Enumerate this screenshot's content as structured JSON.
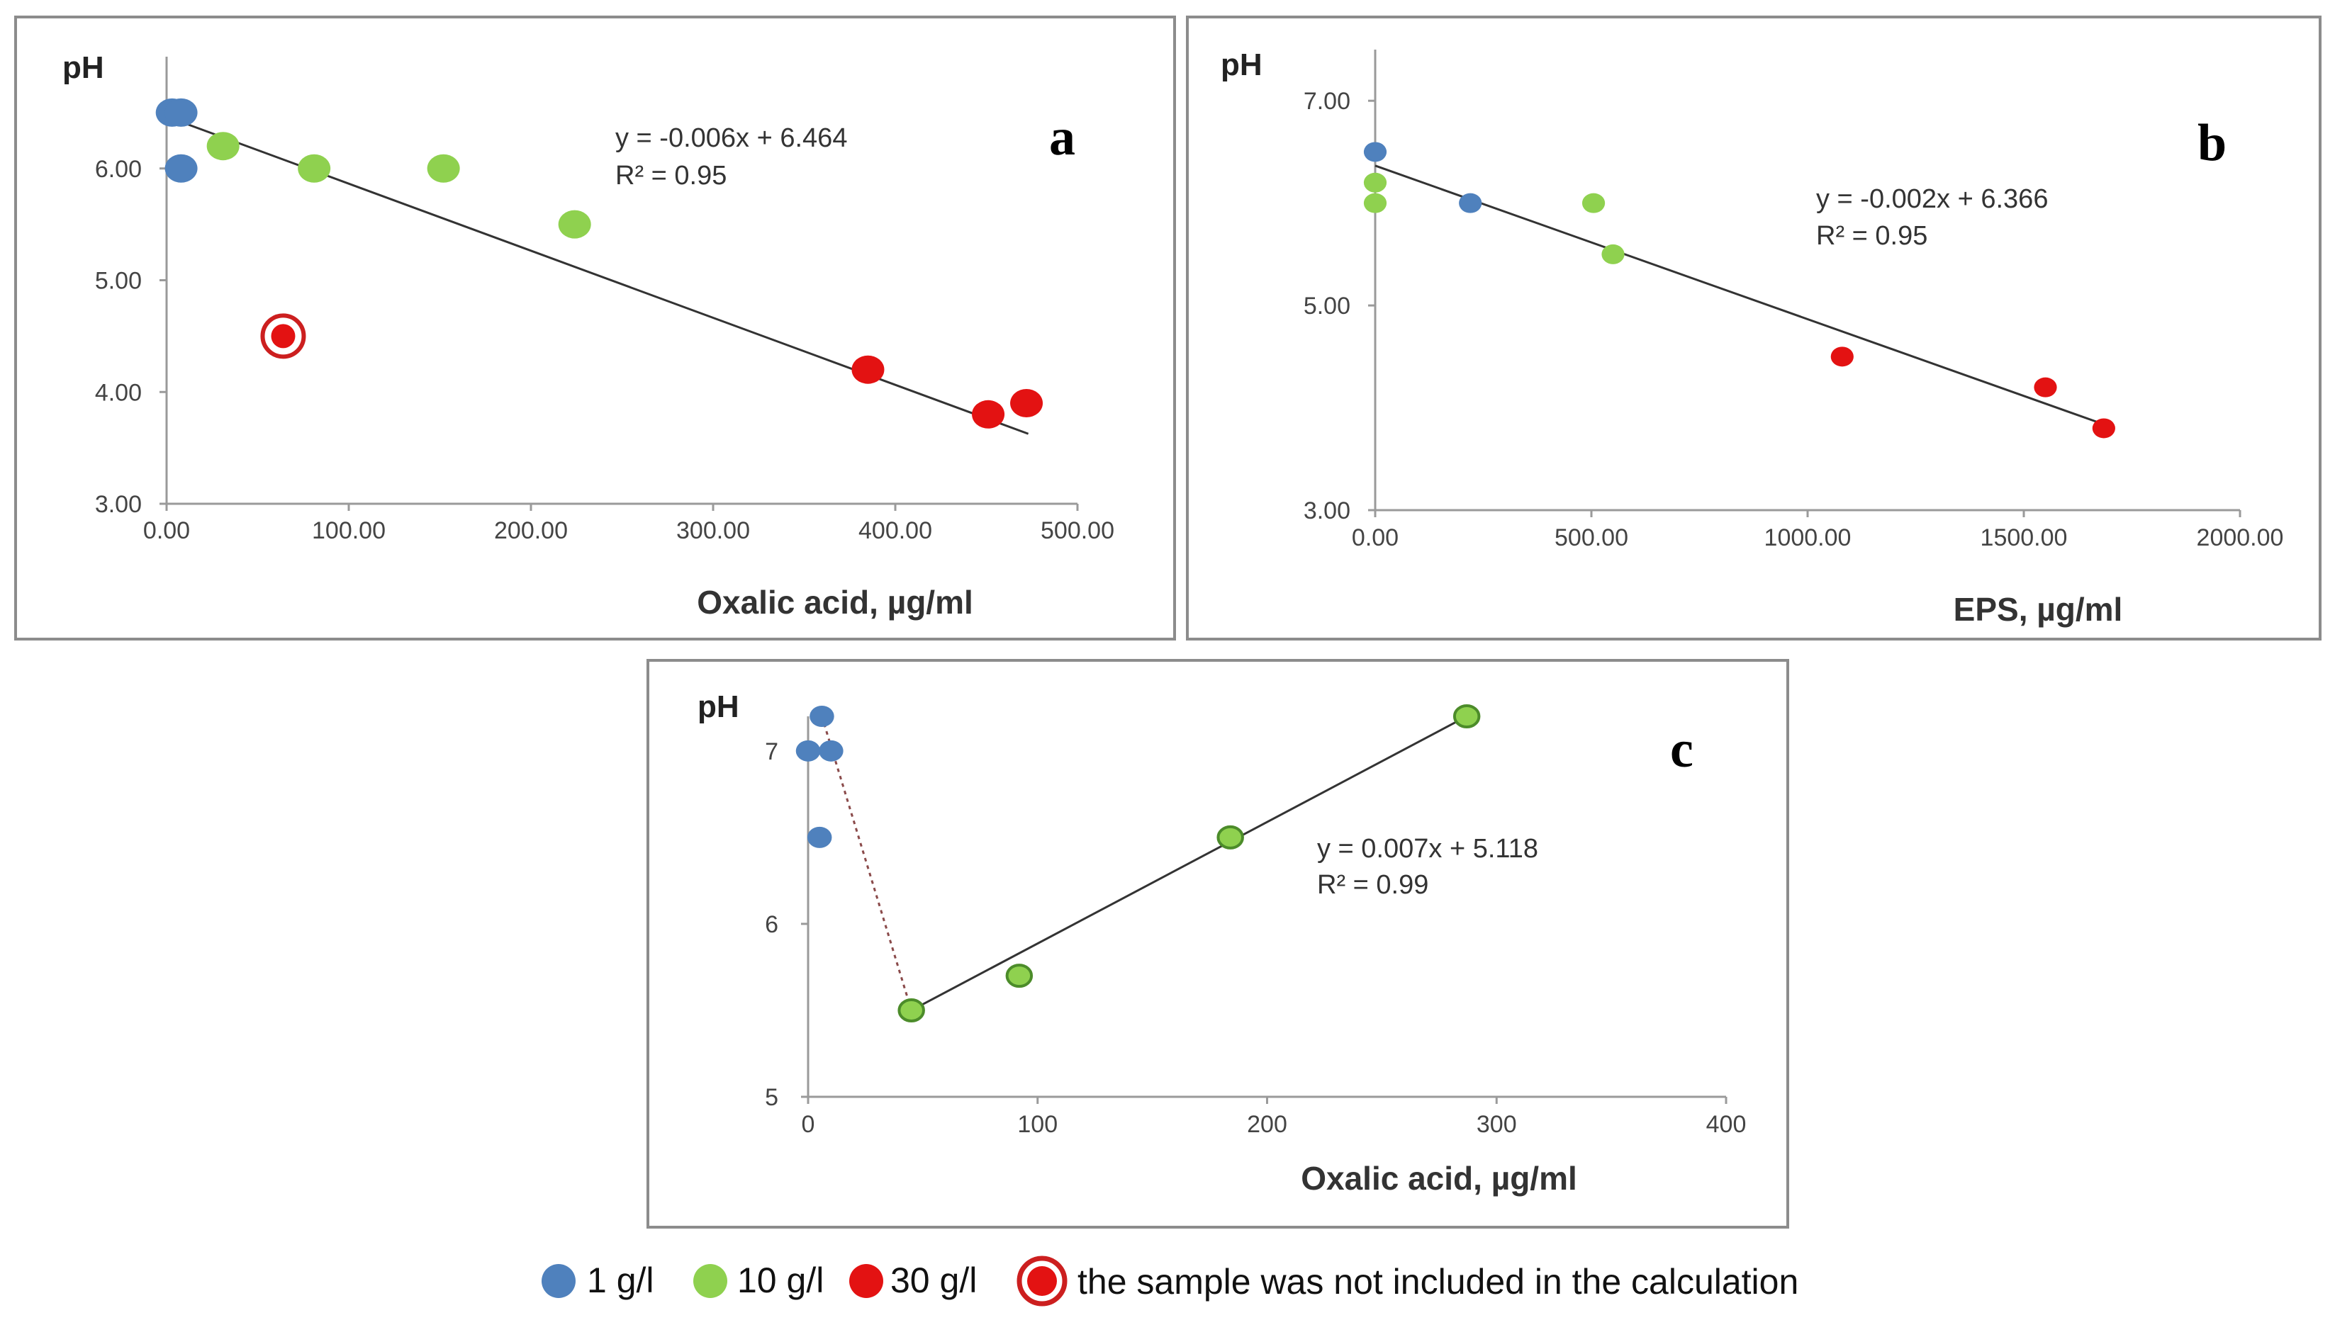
{
  "colors": {
    "1 g/l": "#4f81bd",
    "10 g/l": "#8fd14f",
    "30 g/l": "#e31212",
    "excluded_ring": "#cc1f1f",
    "green_outline": "#4c8c2a"
  },
  "legend": {
    "items": [
      {
        "key": "1 g/l",
        "label": "1 g/l"
      },
      {
        "key": "10 g/l",
        "label": "10 g/l"
      },
      {
        "key": "30 g/l",
        "label": "30 g/l"
      }
    ],
    "excluded_label": "the sample was not included in the calculation"
  },
  "chart_data": [
    {
      "type": "scatter",
      "panel": "a",
      "ylabel": "pH",
      "xlabel": "Oxalic acid, µg/ml",
      "xlim": [
        0,
        500
      ],
      "ylim": [
        3,
        7
      ],
      "xticks": [
        0,
        100,
        200,
        300,
        400,
        500
      ],
      "xtick_labels": [
        "0.00",
        "100.00",
        "200.00",
        "300.00",
        "400.00",
        "500.00"
      ],
      "yticks": [
        3,
        4,
        5,
        6
      ],
      "ytick_labels": [
        "3.00",
        "4.00",
        "5.00",
        "6.00"
      ],
      "equation": "y = -0.006x + 6.464",
      "r2": "R² = 0.95",
      "trendline": {
        "slope": -0.006,
        "intercept": 6.464,
        "x_range": [
          3,
          473
        ]
      },
      "series": [
        {
          "name": "1 g/l",
          "points": [
            [
              3,
              6.5
            ],
            [
              8,
              6.5
            ],
            [
              8,
              6.0
            ]
          ]
        },
        {
          "name": "10 g/l",
          "points": [
            [
              31,
              6.2
            ],
            [
              81,
              6.0
            ],
            [
              152,
              6.0
            ],
            [
              224,
              5.5
            ]
          ]
        },
        {
          "name": "30 g/l",
          "points": [
            [
              385,
              4.2
            ],
            [
              451,
              3.8
            ],
            [
              472,
              3.9
            ]
          ]
        }
      ],
      "excluded_points": [
        [
          64,
          4.5
        ]
      ]
    },
    {
      "type": "scatter",
      "panel": "b",
      "ylabel": "pH",
      "xlabel": "EPS, µg/ml",
      "xlim": [
        0,
        2000
      ],
      "ylim": [
        3,
        7.5
      ],
      "xticks": [
        0,
        500,
        1000,
        1500,
        2000
      ],
      "xtick_labels": [
        "0.00",
        "500.00",
        "1000.00",
        "1500.00",
        "2000.00"
      ],
      "yticks": [
        3,
        5,
        7
      ],
      "ytick_labels": [
        "3.00",
        "5.00",
        "7.00"
      ],
      "equation": "y = -0.002x + 6.366",
      "r2": "R² = 0.95",
      "trendline": {
        "slope": -0.0015,
        "intercept": 6.366,
        "x_range": [
          0,
          1685
        ]
      },
      "series": [
        {
          "name": "1 g/l",
          "points": [
            [
              0,
              6.5
            ],
            [
              220,
              6.0
            ]
          ]
        },
        {
          "name": "10 g/l",
          "points": [
            [
              0,
              6.2
            ],
            [
              0,
              6.0
            ],
            [
              505,
              6.0
            ],
            [
              550,
              5.5
            ]
          ]
        },
        {
          "name": "30 g/l",
          "points": [
            [
              1080,
              4.5
            ],
            [
              1550,
              4.2
            ],
            [
              1685,
              3.8
            ]
          ]
        }
      ]
    },
    {
      "type": "scatter",
      "panel": "c",
      "ylabel": "pH",
      "xlabel": "Oxalic acid, µg/ml",
      "xlim": [
        0,
        400
      ],
      "ylim": [
        5,
        7.2
      ],
      "xticks": [
        0,
        100,
        200,
        300,
        400
      ],
      "xtick_labels": [
        "0",
        "100",
        "200",
        "300",
        "400"
      ],
      "yticks": [
        5,
        6,
        7
      ],
      "ytick_labels": [
        "5",
        "6",
        "7"
      ],
      "equation": "y = 0.007x + 5.118",
      "r2": "R² = 0.99",
      "trendline": {
        "points": [
          [
            45,
            5.5
          ],
          [
            287,
            7.2
          ]
        ]
      },
      "dashed_line": {
        "points": [
          [
            6,
            7.2
          ],
          [
            45,
            5.5
          ]
        ]
      },
      "series": [
        {
          "name": "1 g/l",
          "points": [
            [
              0,
              7.0
            ],
            [
              6,
              7.2
            ],
            [
              10,
              7.0
            ],
            [
              5,
              6.5
            ]
          ]
        },
        {
          "name": "10 g/l",
          "points": [
            [
              45,
              5.5
            ],
            [
              92,
              5.7
            ],
            [
              184,
              6.5
            ],
            [
              287,
              7.2
            ]
          ]
        }
      ]
    }
  ]
}
